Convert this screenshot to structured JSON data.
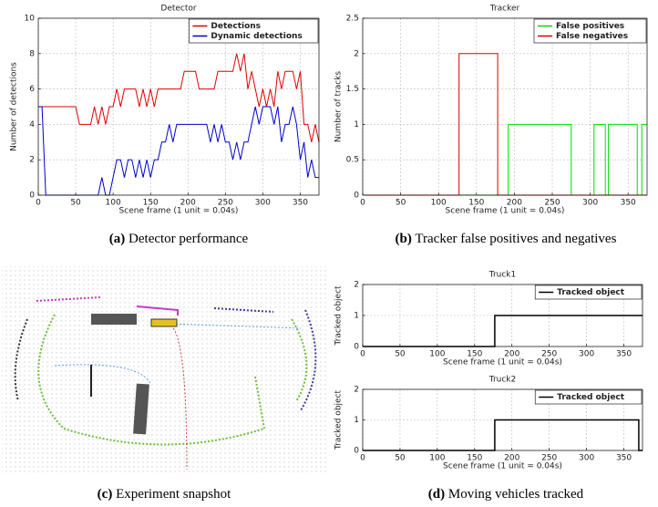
{
  "chart_data": [
    {
      "type": "line",
      "title": "Detector",
      "xlabel": "Scene frame (1 unit = 0.04s)",
      "ylabel": "Number of detections",
      "x": [
        0,
        5,
        10,
        15,
        20,
        25,
        30,
        35,
        40,
        45,
        50,
        55,
        60,
        65,
        70,
        75,
        80,
        85,
        90,
        95,
        100,
        105,
        110,
        115,
        120,
        125,
        130,
        135,
        140,
        145,
        150,
        155,
        160,
        165,
        170,
        175,
        180,
        185,
        190,
        195,
        200,
        205,
        210,
        215,
        220,
        225,
        230,
        235,
        240,
        245,
        250,
        255,
        260,
        265,
        270,
        275,
        280,
        285,
        290,
        295,
        300,
        305,
        310,
        315,
        320,
        325,
        330,
        335,
        340,
        345,
        350,
        355,
        360,
        365,
        370,
        375
      ],
      "series": [
        {
          "name": "Detections",
          "color": "#e00000",
          "values": [
            5,
            5,
            5,
            5,
            5,
            5,
            5,
            5,
            5,
            5,
            5,
            4,
            4,
            4,
            4,
            5,
            4,
            5,
            4,
            5,
            5,
            6,
            5,
            6,
            6,
            6,
            6,
            5,
            6,
            5,
            6,
            5,
            6,
            6,
            6,
            6,
            6,
            6,
            6,
            7,
            7,
            7,
            7,
            6,
            6,
            6,
            6,
            6,
            7,
            7,
            7,
            7,
            7,
            8,
            7,
            8,
            6,
            7,
            6,
            5,
            6,
            5,
            6,
            5,
            7,
            6,
            7,
            7,
            7,
            6,
            7,
            4,
            4,
            3,
            4,
            3
          ]
        },
        {
          "name": "Dynamic detections",
          "color": "#0000cc",
          "values": [
            5,
            5,
            0,
            0,
            0,
            0,
            0,
            0,
            0,
            0,
            0,
            0,
            0,
            0,
            0,
            0,
            0,
            1,
            0,
            0,
            1,
            2,
            2,
            1,
            2,
            2,
            1,
            2,
            1,
            2,
            1,
            2,
            2,
            3,
            3,
            4,
            3,
            4,
            4,
            4,
            4,
            4,
            4,
            4,
            4,
            4,
            3,
            4,
            3,
            4,
            3,
            3,
            2,
            3,
            2,
            3,
            3,
            4,
            5,
            4,
            5,
            5,
            5,
            4,
            5,
            3,
            4,
            4,
            5,
            4,
            2,
            3,
            1,
            2,
            1,
            1
          ]
        }
      ],
      "xlim": [
        0,
        375
      ],
      "xticks": [
        0,
        50,
        100,
        150,
        200,
        250,
        300,
        350
      ],
      "ylim": [
        0,
        10
      ],
      "yticks": [
        0,
        2,
        4,
        6,
        8,
        10
      ],
      "grid": true,
      "legend": "upper right"
    },
    {
      "type": "line",
      "title": "Tracker",
      "xlabel": "Scene frame (1 unit = 0.04s)",
      "ylabel": "Number of tracks",
      "series": [
        {
          "name": "False positives",
          "color": "#00dd00",
          "x": [
            0,
            192,
            192,
            275,
            275,
            305,
            305,
            320,
            320,
            324,
            324,
            362,
            362,
            368,
            368,
            375
          ],
          "values": [
            0,
            0,
            1,
            1,
            0,
            0,
            1,
            1,
            0,
            0,
            1,
            1,
            0,
            0,
            1,
            1
          ]
        },
        {
          "name": "False negatives",
          "color": "#e00000",
          "x": [
            0,
            127,
            127,
            178,
            178,
            375
          ],
          "values": [
            0,
            0,
            2,
            2,
            0,
            0
          ]
        }
      ],
      "xlim": [
        0,
        375
      ],
      "xticks": [
        0,
        50,
        100,
        150,
        200,
        250,
        300,
        350
      ],
      "ylim": [
        0,
        2.5
      ],
      "yticks": [
        0,
        0.5,
        1,
        1.5,
        2,
        2.5
      ],
      "grid": true,
      "legend": "upper right"
    },
    {
      "type": "line",
      "title": "Truck1",
      "xlabel": "Scene frame (1 unit = 0.04s)",
      "ylabel": "Tracked object",
      "series": [
        {
          "name": "Tracked object",
          "color": "#000000",
          "x": [
            0,
            177,
            177,
            375
          ],
          "values": [
            0,
            0,
            1,
            1
          ]
        }
      ],
      "xlim": [
        0,
        375
      ],
      "xticks": [
        0,
        50,
        100,
        150,
        200,
        250,
        300,
        350
      ],
      "ylim": [
        0,
        2
      ],
      "yticks": [
        0,
        1,
        2
      ],
      "grid": true,
      "legend": "upper right"
    },
    {
      "type": "line",
      "title": "Truck2",
      "xlabel": "Scene frame (1 unit = 0.04s)",
      "ylabel": "Tracked object",
      "series": [
        {
          "name": "Tracked object",
          "color": "#000000",
          "x": [
            0,
            177,
            177,
            370,
            370,
            375
          ],
          "values": [
            0,
            0,
            1,
            1,
            0,
            0
          ]
        }
      ],
      "xlim": [
        0,
        375
      ],
      "xticks": [
        0,
        50,
        100,
        150,
        200,
        250,
        300,
        350
      ],
      "ylim": [
        0,
        2
      ],
      "yticks": [
        0,
        1,
        2
      ],
      "grid": true,
      "legend": "upper right"
    }
  ],
  "captions": [
    {
      "label": "(a)",
      "text": "Detector performance"
    },
    {
      "label": "(b)",
      "text": "Tracker false positives and negatives"
    },
    {
      "label": "(c)",
      "text": "Experiment snapshot"
    },
    {
      "label": "(d)",
      "text": "Moving vehicles tracked"
    }
  ]
}
